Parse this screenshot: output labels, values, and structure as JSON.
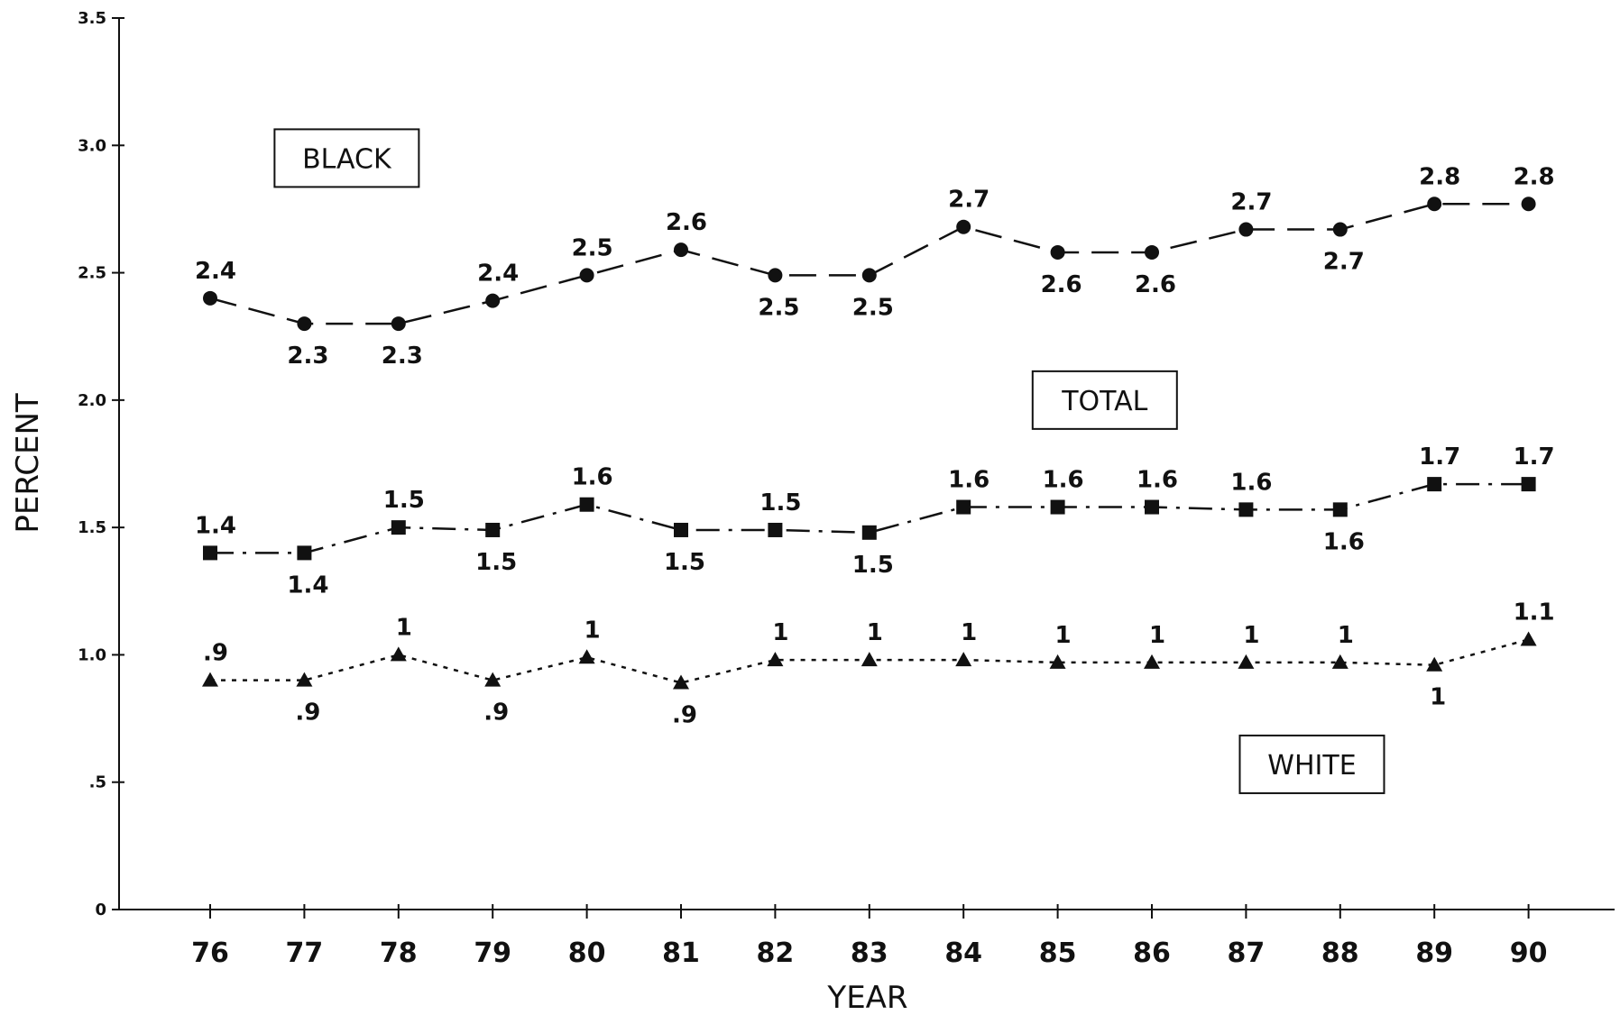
{
  "chart_data": {
    "type": "line",
    "title": "",
    "xlabel": "YEAR",
    "ylabel": "PERCENT",
    "ylim": [
      0,
      3.5
    ],
    "yticks": [
      {
        "value": 0,
        "label": "0"
      },
      {
        "value": 0.5,
        "label": ".5"
      },
      {
        "value": 1.0,
        "label": "1.0"
      },
      {
        "value": 1.5,
        "label": "1.5"
      },
      {
        "value": 2.0,
        "label": "2.0"
      },
      {
        "value": 2.5,
        "label": "2.5"
      },
      {
        "value": 3.0,
        "label": "3.0"
      },
      {
        "value": 3.5,
        "label": "3.5"
      }
    ],
    "categories": [
      "76",
      "77",
      "78",
      "79",
      "80",
      "81",
      "82",
      "83",
      "84",
      "85",
      "86",
      "87",
      "88",
      "89",
      "90"
    ],
    "grid": false,
    "legend": "inline boxed labels",
    "series": [
      {
        "name": "BLACK",
        "marker": "circle",
        "line_style": "long-dash",
        "values": [
          2.4,
          2.3,
          2.3,
          2.39,
          2.49,
          2.59,
          2.49,
          2.49,
          2.68,
          2.58,
          2.58,
          2.67,
          2.67,
          2.77,
          2.77
        ],
        "labels": [
          "2.4",
          "2.3",
          "2.3",
          "2.4",
          "2.5",
          "2.6",
          "2.5",
          "2.5",
          "2.7",
          "2.6",
          "2.6",
          "2.7",
          "2.7",
          "2.8",
          "2.8"
        ],
        "label_positions": [
          "above",
          "below",
          "below",
          "above",
          "above",
          "above",
          "below",
          "below",
          "above",
          "below",
          "below",
          "above",
          "below",
          "above",
          "above"
        ]
      },
      {
        "name": "TOTAL",
        "marker": "square",
        "line_style": "dash-dot",
        "values": [
          1.4,
          1.4,
          1.5,
          1.49,
          1.59,
          1.49,
          1.49,
          1.48,
          1.58,
          1.58,
          1.58,
          1.57,
          1.57,
          1.67,
          1.67
        ],
        "labels": [
          "1.4",
          "1.4",
          "1.5",
          "1.5",
          "1.6",
          "1.5",
          "1.5",
          "1.5",
          "1.6",
          "1.6",
          "1.6",
          "1.6",
          "1.6",
          "1.7",
          "1.7"
        ],
        "label_positions": [
          "above",
          "below",
          "above",
          "below",
          "above",
          "below",
          "above",
          "below",
          "above",
          "above",
          "above",
          "above",
          "below",
          "above",
          "above"
        ]
      },
      {
        "name": "WHITE",
        "marker": "triangle",
        "line_style": "dotted",
        "values": [
          0.9,
          0.9,
          1.0,
          0.9,
          0.99,
          0.89,
          0.98,
          0.98,
          0.98,
          0.97,
          0.97,
          0.97,
          0.97,
          0.96,
          1.06
        ],
        "labels": [
          ".9",
          ".9",
          "1",
          ".9",
          "1",
          ".9",
          "1",
          "1",
          "1",
          "1",
          "1",
          "1",
          "1",
          "1",
          "1.1"
        ],
        "label_positions": [
          "above",
          "below",
          "above",
          "below",
          "above",
          "below",
          "above",
          "above",
          "above",
          "above",
          "above",
          "above",
          "above",
          "below",
          "above"
        ]
      }
    ]
  }
}
